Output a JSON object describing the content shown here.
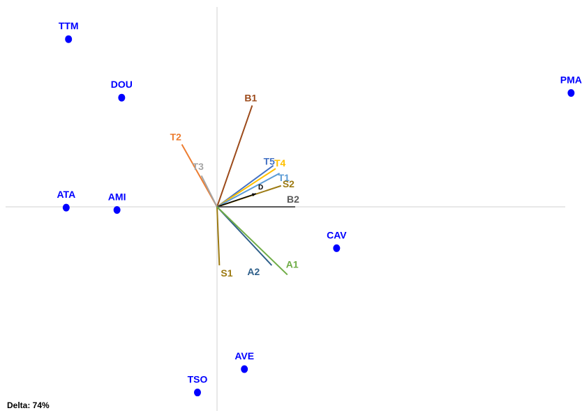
{
  "chart_data": {
    "type": "biplot",
    "note": "Delta: 74%",
    "point_color": "#0000FF",
    "points": [
      {
        "label": "TTM",
        "x": -1.9,
        "y": 2.15
      },
      {
        "label": "DOU",
        "x": -1.22,
        "y": 1.4
      },
      {
        "label": "PMA",
        "x": 4.53,
        "y": 1.46
      },
      {
        "label": "ATA",
        "x": -1.93,
        "y": -0.01
      },
      {
        "label": "AMI",
        "x": -1.28,
        "y": -0.04
      },
      {
        "label": "CAV",
        "x": 1.53,
        "y": -0.53
      },
      {
        "label": "AVE",
        "x": 0.35,
        "y": -2.08
      },
      {
        "label": "TSO",
        "x": -0.25,
        "y": -2.38
      }
    ],
    "vectors": [
      {
        "label": "B1",
        "x": 0.45,
        "y": 1.3,
        "color": "#9C4A1A"
      },
      {
        "label": "T2",
        "x": -0.45,
        "y": 0.8,
        "color": "#ED7D31"
      },
      {
        "label": "T3",
        "x": -0.2,
        "y": 0.4,
        "color": "#A5A5A5"
      },
      {
        "label": "T5",
        "x": 0.72,
        "y": 0.53,
        "color": "#4472C4"
      },
      {
        "label": "T4",
        "x": 0.75,
        "y": 0.49,
        "color": "#FFC000"
      },
      {
        "label": "T1",
        "x": 0.8,
        "y": 0.43,
        "color": "#5B9BD5"
      },
      {
        "label": "S2",
        "x": 0.82,
        "y": 0.27,
        "color": "#9C7A12"
      },
      {
        "label": "D",
        "x": 0.5,
        "y": 0.17,
        "color": "#000000"
      },
      {
        "label": "B2",
        "x": 1.0,
        "y": 0.0,
        "color": "#595959"
      },
      {
        "label": "S1",
        "x": 0.03,
        "y": -0.75,
        "color": "#9C7A12"
      },
      {
        "label": "A2",
        "x": 0.7,
        "y": -0.75,
        "color": "#2E5F8A"
      },
      {
        "label": "A1",
        "x": 0.9,
        "y": -0.87,
        "color": "#70AD47"
      }
    ]
  }
}
